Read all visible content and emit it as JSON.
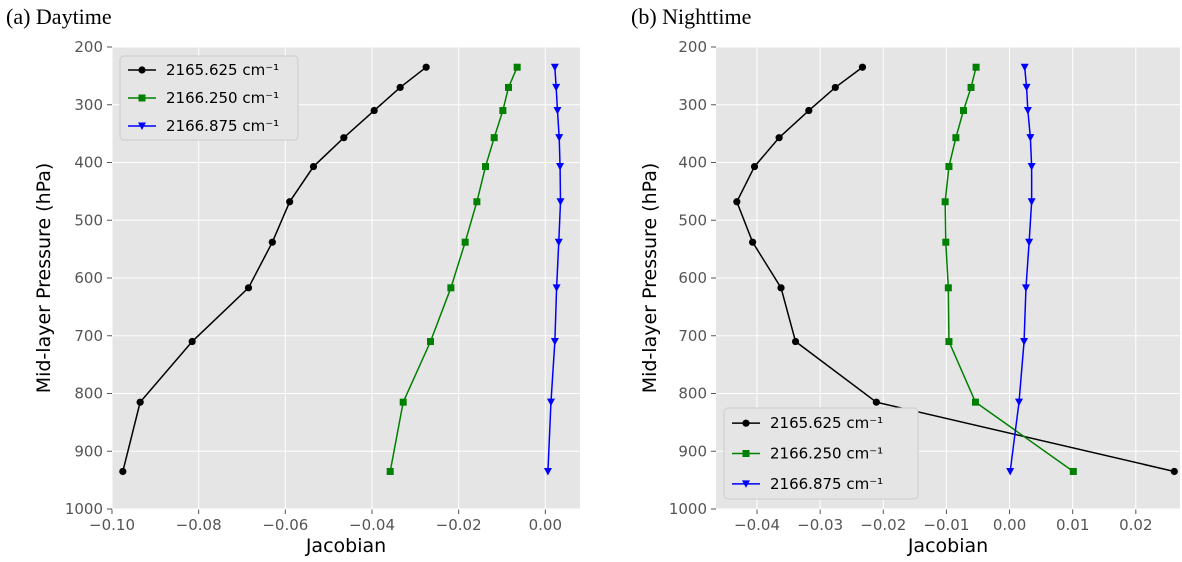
{
  "chart_data": [
    {
      "type": "line",
      "panel_title": "(a) Daytime",
      "xlabel": "Jacobian",
      "ylabel": "Mid-layer Pressure (hPa)",
      "xlim": [
        -0.1,
        0.008
      ],
      "ylim": [
        1000,
        200
      ],
      "y_inverted": true,
      "grid": true,
      "legend_position": "top-left",
      "x_ticks": [
        -0.1,
        -0.08,
        -0.06,
        -0.04,
        -0.02,
        0.0
      ],
      "x_tick_labels": [
        "−0.10",
        "−0.08",
        "−0.06",
        "−0.04",
        "−0.02",
        "0.00"
      ],
      "y_ticks": [
        200,
        300,
        400,
        500,
        600,
        700,
        800,
        900,
        1000
      ],
      "y_tick_labels": [
        "200",
        "300",
        "400",
        "500",
        "600",
        "700",
        "800",
        "900",
        "1000"
      ],
      "series": [
        {
          "name": "2165.625 cm⁻¹",
          "color": "#000000",
          "marker": "circle",
          "x": [
            -0.0275,
            -0.0335,
            -0.0395,
            -0.0465,
            -0.0535,
            -0.059,
            -0.063,
            -0.0685,
            -0.0815,
            -0.0935,
            -0.0975
          ],
          "y": [
            235,
            270,
            310,
            357,
            407,
            468,
            538,
            617,
            710,
            815,
            935
          ]
        },
        {
          "name": "2166.250 cm⁻¹",
          "color": "#008000",
          "marker": "square",
          "x": [
            -0.0065,
            -0.0085,
            -0.0098,
            -0.0118,
            -0.0138,
            -0.0158,
            -0.0185,
            -0.0218,
            -0.0265,
            -0.0328,
            -0.0358
          ],
          "y": [
            235,
            270,
            310,
            357,
            407,
            468,
            538,
            617,
            710,
            815,
            935
          ]
        },
        {
          "name": "2166.875 cm⁻¹",
          "color": "#0000ff",
          "marker": "triangle-down",
          "x": [
            0.0022,
            0.0025,
            0.0028,
            0.0032,
            0.0034,
            0.0035,
            0.0031,
            0.0026,
            0.0022,
            0.0013,
            0.0006
          ],
          "y": [
            235,
            270,
            310,
            357,
            407,
            468,
            538,
            617,
            710,
            815,
            935
          ]
        }
      ]
    },
    {
      "type": "line",
      "panel_title": "(b) Nighttime",
      "xlabel": "Jacobian",
      "ylabel": "Mid-layer Pressure (hPa)",
      "xlim": [
        -0.0465,
        0.027
      ],
      "ylim": [
        1000,
        200
      ],
      "y_inverted": true,
      "grid": true,
      "legend_position": "bottom-left",
      "x_ticks": [
        -0.04,
        -0.03,
        -0.02,
        -0.01,
        0.0,
        0.01,
        0.02
      ],
      "x_tick_labels": [
        "−0.04",
        "−0.03",
        "−0.02",
        "−0.01",
        "0.00",
        "0.01",
        "0.02"
      ],
      "y_ticks": [
        200,
        300,
        400,
        500,
        600,
        700,
        800,
        900,
        1000
      ],
      "y_tick_labels": [
        "200",
        "300",
        "400",
        "500",
        "600",
        "700",
        "800",
        "900",
        "1000"
      ],
      "series": [
        {
          "name": "2165.625 cm⁻¹",
          "color": "#000000",
          "marker": "circle",
          "x": [
            -0.0233,
            -0.0276,
            -0.0318,
            -0.0365,
            -0.0404,
            -0.0432,
            -0.0407,
            -0.0362,
            -0.0339,
            -0.0211,
            0.0261
          ],
          "y": [
            235,
            270,
            310,
            357,
            407,
            468,
            538,
            617,
            710,
            815,
            935
          ]
        },
        {
          "name": "2166.250 cm⁻¹",
          "color": "#008000",
          "marker": "square",
          "x": [
            -0.0053,
            -0.0061,
            -0.0073,
            -0.0085,
            -0.0096,
            -0.0102,
            -0.0101,
            -0.0097,
            -0.0096,
            -0.0054,
            0.0101
          ],
          "y": [
            235,
            270,
            310,
            357,
            407,
            468,
            538,
            617,
            710,
            815,
            935
          ]
        },
        {
          "name": "2166.875 cm⁻¹",
          "color": "#0000ff",
          "marker": "triangle-down",
          "x": [
            0.0024,
            0.0027,
            0.0029,
            0.0033,
            0.0035,
            0.0035,
            0.0031,
            0.0026,
            0.0023,
            0.0015,
            0.0001
          ],
          "y": [
            235,
            270,
            310,
            357,
            407,
            468,
            538,
            617,
            710,
            815,
            935
          ]
        }
      ]
    }
  ]
}
